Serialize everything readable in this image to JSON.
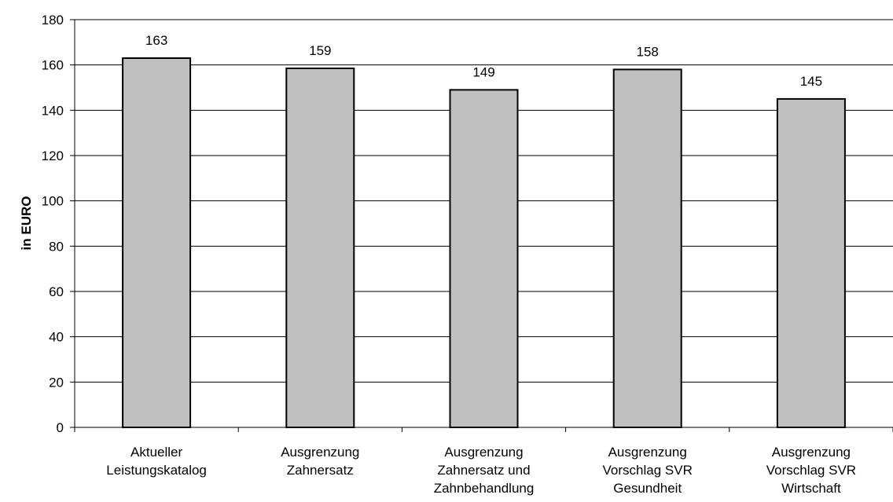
{
  "chart_data": {
    "type": "bar",
    "title": "",
    "xlabel": "",
    "ylabel": "in EURO",
    "ylim": [
      0,
      180
    ],
    "yticks": [
      0,
      20,
      40,
      60,
      80,
      100,
      120,
      140,
      160,
      180
    ],
    "grid": true,
    "legend": "none",
    "categories": [
      [
        "Aktueller",
        "Leistungskatalog"
      ],
      [
        "Ausgrenzung",
        "Zahnersatz"
      ],
      [
        "Ausgrenzung",
        "Zahnersatz und",
        "Zahnbehandlung"
      ],
      [
        "Ausgrenzung",
        "Vorschlag SVR",
        "Gesundheit"
      ],
      [
        "Ausgrenzung",
        "Vorschlag SVR",
        "Wirtschaft"
      ]
    ],
    "values": [
      163,
      158.5,
      149,
      158,
      145
    ],
    "data_labels": [
      "163",
      "159",
      "149",
      "158",
      "145"
    ],
    "colors": {
      "bar_fill": "#c0c0c0",
      "bar_stroke": "#000000",
      "grid": "#000000"
    }
  }
}
